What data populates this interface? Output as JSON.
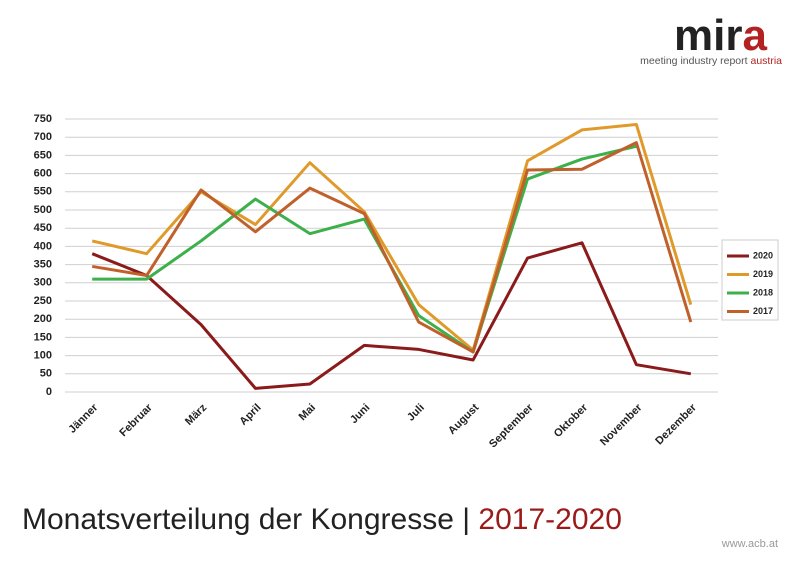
{
  "chart_data": {
    "type": "line",
    "title": "Monatsverteilung der Kongresse",
    "title_separator": "|",
    "title_years": "2017-2020",
    "logo_main": "mir",
    "logo_accent": "a",
    "logo_subtitle": "meeting industry report",
    "logo_subtitle_accent": "austria",
    "footer": "www.acb.at",
    "categories": [
      "Jänner",
      "Februar",
      "März",
      "April",
      "Mai",
      "Juni",
      "Juli",
      "August",
      "September",
      "Oktober",
      "November",
      "Dezember"
    ],
    "series": [
      {
        "name": "2020",
        "color": "#8b1a1a",
        "values": [
          380,
          320,
          185,
          10,
          22,
          128,
          117,
          88,
          368,
          410,
          75,
          50
        ]
      },
      {
        "name": "2019",
        "color": "#e09a2a",
        "values": [
          415,
          380,
          550,
          460,
          630,
          495,
          240,
          115,
          635,
          720,
          735,
          240
        ]
      },
      {
        "name": "2018",
        "color": "#3cb04a",
        "values": [
          310,
          310,
          415,
          530,
          435,
          475,
          210,
          110,
          585,
          640,
          675,
          null
        ]
      },
      {
        "name": "2017",
        "color": "#c0602a",
        "values": [
          345,
          320,
          555,
          440,
          560,
          490,
          192,
          110,
          610,
          612,
          685,
          192
        ]
      }
    ],
    "ylim": [
      0,
      750
    ],
    "yticks": [
      0,
      50,
      100,
      150,
      200,
      250,
      300,
      350,
      400,
      450,
      500,
      550,
      600,
      650,
      700,
      750
    ],
    "grid": true,
    "legend": "right"
  }
}
